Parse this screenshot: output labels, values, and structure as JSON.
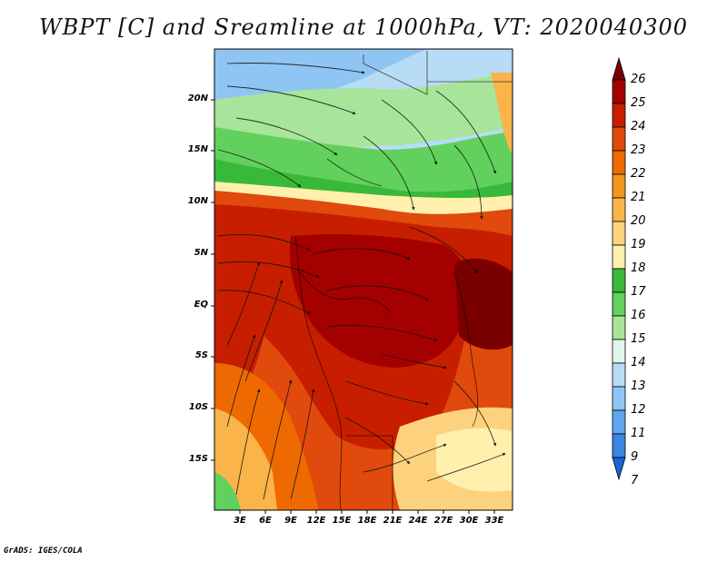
{
  "title": "WBPT [C] and Sreamline at 1000hPa, VT: 2020040300",
  "credit": "GrADS: IGES/COLA",
  "axes": {
    "y_ticks": [
      "20N",
      "15N",
      "10N",
      "5N",
      "EQ",
      "5S",
      "10S",
      "15S"
    ],
    "x_ticks": [
      "3E",
      "6E",
      "9E",
      "12E",
      "15E",
      "18E",
      "21E",
      "24E",
      "27E",
      "30E",
      "33E"
    ]
  },
  "colorbar": {
    "labels": [
      "26",
      "25",
      "24",
      "23",
      "22",
      "21",
      "20",
      "19",
      "18",
      "17",
      "16",
      "15",
      "14",
      "13",
      "12",
      "11",
      "9",
      "7"
    ],
    "colors": [
      "#7a0000",
      "#a50000",
      "#c81e00",
      "#e04a0c",
      "#ee6a00",
      "#f3961c",
      "#fab44a",
      "#fdd27e",
      "#fff0ae",
      "#38b93a",
      "#62d05c",
      "#a8e49a",
      "#e0f6ec",
      "#b8dcf6",
      "#8fc5f2",
      "#5fa6ec",
      "#3a86e2",
      "#1e62d8"
    ]
  }
}
